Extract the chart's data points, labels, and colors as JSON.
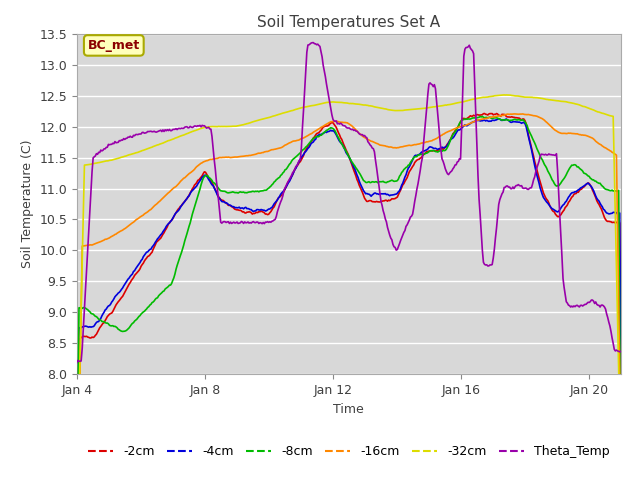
{
  "title": "Soil Temperatures Set A",
  "xlabel": "Time",
  "ylabel": "Soil Temperature (C)",
  "ylim": [
    8.0,
    13.5
  ],
  "yticks": [
    8.0,
    8.5,
    9.0,
    9.5,
    10.0,
    10.5,
    11.0,
    11.5,
    12.0,
    12.5,
    13.0,
    13.5
  ],
  "xtick_labels": [
    "Jan 4",
    "Jan 8",
    "Jan 12",
    "Jan 16",
    "Jan 20"
  ],
  "xtick_pos": [
    0,
    4,
    8,
    12,
    16
  ],
  "xlim": [
    0,
    17
  ],
  "legend_entries": [
    "-2cm",
    "-4cm",
    "-8cm",
    "-16cm",
    "-32cm",
    "Theta_Temp"
  ],
  "line_colors": [
    "#dd0000",
    "#0000dd",
    "#00bb00",
    "#ff8800",
    "#dddd00",
    "#9900aa"
  ],
  "annotation_text": "BC_met",
  "fig_bg": "#ffffff",
  "plot_bg": "#d8d8d8",
  "grid_color": "#ffffff",
  "title_color": "#404040",
  "tick_color": "#404040"
}
